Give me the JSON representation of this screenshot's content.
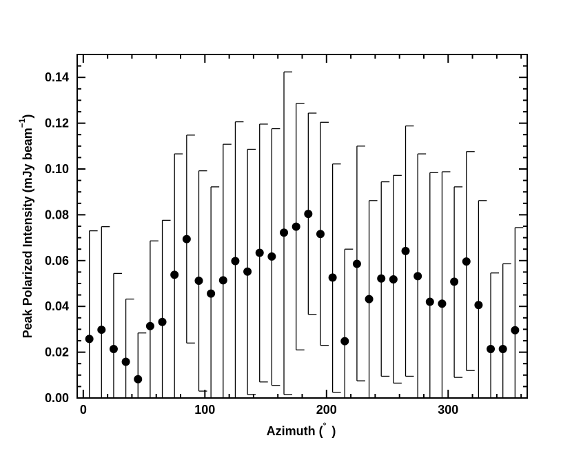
{
  "chart_data": {
    "type": "scatter",
    "title": "",
    "xlabel": "Azimuth (",
    "xlabel_symbol": "°",
    "xlabel_close": ")",
    "ylabel": "Peak Polarized Intensity (mJy beam",
    "ylabel_exponent": "−1",
    "ylabel_close": ")",
    "xlim": [
      -5,
      365
    ],
    "ylim": [
      0.0,
      0.15
    ],
    "x_ticks": [
      0,
      100,
      200,
      300
    ],
    "x_tick_labels": [
      "0",
      "100",
      "200",
      "300"
    ],
    "y_ticks": [
      0.0,
      0.02,
      0.04,
      0.06,
      0.08,
      0.1,
      0.12,
      0.14
    ],
    "y_tick_labels": [
      "0.00",
      "0.02",
      "0.04",
      "0.06",
      "0.08",
      "0.10",
      "0.12",
      "0.14"
    ],
    "grid": false,
    "legend": "none",
    "marker_color": "#000000",
    "series": [
      {
        "x": [
          5,
          15,
          25,
          35,
          45,
          55,
          65,
          75,
          85,
          95,
          105,
          115,
          125,
          135,
          145,
          155,
          165,
          175,
          185,
          195,
          205,
          215,
          225,
          235,
          245,
          255,
          265,
          275,
          285,
          295,
          305,
          315,
          325,
          335,
          345,
          355
        ],
        "y": [
          0.0258,
          0.0298,
          0.0214,
          0.0158,
          0.0082,
          0.0314,
          0.0332,
          0.0538,
          0.0694,
          0.0512,
          0.0456,
          0.0514,
          0.0598,
          0.0552,
          0.0634,
          0.0618,
          0.0722,
          0.0748,
          0.0804,
          0.0716,
          0.0526,
          0.0248,
          0.0586,
          0.0432,
          0.0522,
          0.0518,
          0.0642,
          0.0532,
          0.042,
          0.0412,
          0.0508,
          0.0596,
          0.0406,
          0.0214,
          0.0214,
          0.0296
        ],
        "err_low": [
          0.0,
          0.0,
          0.0,
          0.0,
          0.0,
          0.0,
          0.0,
          0.0,
          0.024,
          0.003,
          0.0,
          0.0,
          0.0,
          0.0015,
          0.007,
          0.0055,
          0.0015,
          0.021,
          0.0365,
          0.023,
          0.0025,
          0.0,
          0.0075,
          0.0,
          0.0095,
          0.0065,
          0.0095,
          0.0,
          0.0,
          0.0,
          0.009,
          0.012,
          0.0,
          0.0,
          0.0,
          0.0
        ],
        "err_high": [
          0.073,
          0.0748,
          0.0544,
          0.0432,
          0.0284,
          0.0686,
          0.0776,
          0.1066,
          0.1148,
          0.0992,
          0.0922,
          0.1108,
          0.1206,
          0.1086,
          0.1196,
          0.1176,
          0.1424,
          0.1286,
          0.1244,
          0.1204,
          0.1022,
          0.065,
          0.11,
          0.0862,
          0.0944,
          0.0972,
          0.1188,
          0.1066,
          0.0984,
          0.0988,
          0.0922,
          0.1076,
          0.0862,
          0.0546,
          0.0586,
          0.0744
        ]
      }
    ]
  }
}
